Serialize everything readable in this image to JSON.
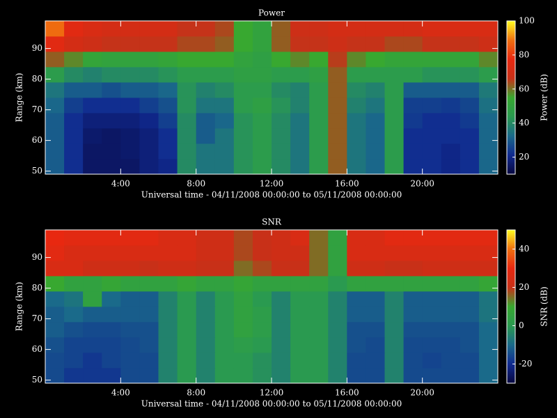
{
  "chart_data": [
    {
      "type": "heatmap",
      "title": "Power",
      "xlabel": "Universal time - 04/11/2008 00:00:00 to 05/11/2008 00:00:00",
      "ylabel": "Range (km)",
      "colorbar_label": "Power (dB)",
      "xbins": [
        0,
        1,
        2,
        3,
        4,
        5,
        6,
        7,
        8,
        9,
        10,
        11,
        12,
        13,
        14,
        15,
        16,
        17,
        18,
        19,
        20,
        21,
        22,
        23,
        24
      ],
      "ybins": [
        49,
        54,
        59,
        64,
        69,
        74,
        79,
        84,
        89,
        94,
        99
      ],
      "values": [
        [
          30,
          22,
          15,
          15,
          15,
          18,
          20,
          40,
          35,
          35,
          42,
          45,
          40,
          35,
          45,
          62,
          35,
          32,
          45,
          22,
          22,
          20,
          22,
          32
        ],
        [
          30,
          22,
          15,
          15,
          16,
          18,
          22,
          40,
          35,
          35,
          42,
          45,
          40,
          35,
          45,
          62,
          35,
          32,
          45,
          22,
          22,
          20,
          22,
          32
        ],
        [
          30,
          22,
          16,
          15,
          16,
          18,
          22,
          40,
          30,
          35,
          42,
          45,
          40,
          35,
          45,
          62,
          35,
          32,
          45,
          22,
          22,
          22,
          22,
          32
        ],
        [
          30,
          22,
          18,
          18,
          18,
          20,
          25,
          40,
          30,
          32,
          42,
          45,
          40,
          35,
          45,
          62,
          35,
          32,
          45,
          24,
          22,
          22,
          24,
          32
        ],
        [
          32,
          25,
          22,
          22,
          22,
          25,
          28,
          42,
          35,
          35,
          45,
          48,
          42,
          38,
          45,
          62,
          38,
          35,
          45,
          25,
          25,
          24,
          26,
          34
        ],
        [
          35,
          30,
          30,
          28,
          30,
          30,
          32,
          42,
          38,
          40,
          45,
          45,
          40,
          38,
          45,
          62,
          40,
          38,
          45,
          30,
          30,
          30,
          30,
          36
        ],
        [
          45,
          40,
          38,
          40,
          40,
          40,
          42,
          45,
          45,
          45,
          48,
          48,
          45,
          45,
          48,
          62,
          45,
          45,
          45,
          45,
          42,
          42,
          42,
          45
        ],
        [
          62,
          58,
          52,
          50,
          50,
          50,
          52,
          55,
          55,
          55,
          50,
          48,
          55,
          58,
          55,
          65,
          58,
          55,
          52,
          52,
          52,
          52,
          52,
          58
        ],
        [
          75,
          70,
          68,
          66,
          66,
          66,
          66,
          64,
          64,
          62,
          55,
          50,
          62,
          66,
          66,
          68,
          66,
          66,
          64,
          64,
          66,
          66,
          66,
          68
        ],
        [
          88,
          75,
          72,
          70,
          70,
          70,
          70,
          66,
          66,
          64,
          55,
          50,
          62,
          68,
          68,
          70,
          70,
          70,
          70,
          70,
          72,
          72,
          72,
          72
        ]
      ],
      "xlim": [
        0,
        24
      ],
      "ylim": [
        49,
        99
      ],
      "xticks": [
        {
          "value": 4,
          "label": "4:00"
        },
        {
          "value": 8,
          "label": "8:00"
        },
        {
          "value": 12,
          "label": "12:00"
        },
        {
          "value": 16,
          "label": "16:00"
        },
        {
          "value": 20,
          "label": "20:00"
        }
      ],
      "yticks": [
        50,
        60,
        70,
        80,
        90
      ],
      "clim": [
        10,
        100
      ],
      "cticks": [
        20,
        40,
        60,
        80,
        100
      ],
      "colormap": [
        "#080840",
        "#102a90",
        "#1a6a8a",
        "#2a9a50",
        "#38a830",
        "#c83018",
        "#e82810",
        "#f07010",
        "#ffff20"
      ]
    },
    {
      "type": "heatmap",
      "title": "SNR",
      "xlabel": "Universal time - 04/11/2008 00:00:00 to 05/11/2008 00:00:00",
      "ylabel": "Range (km)",
      "colorbar_label": "SNR (dB)",
      "xbins": [
        0,
        1,
        2,
        3,
        4,
        5,
        6,
        7,
        8,
        9,
        10,
        11,
        12,
        13,
        14,
        15,
        16,
        17,
        18,
        19,
        20,
        21,
        22,
        23,
        24
      ],
      "ybins": [
        49,
        54,
        59,
        64,
        69,
        74,
        79,
        84,
        89,
        94,
        99
      ],
      "values": [
        [
          -15,
          -18,
          -18,
          -18,
          -15,
          -15,
          -5,
          0,
          -5,
          0,
          0,
          -2,
          -5,
          0,
          0,
          -5,
          -15,
          -15,
          -5,
          -15,
          -15,
          -15,
          -15,
          -10
        ],
        [
          -15,
          -16,
          -18,
          -16,
          -15,
          -15,
          -5,
          0,
          -5,
          0,
          0,
          -2,
          -5,
          0,
          0,
          -5,
          -15,
          -15,
          -5,
          -15,
          -16,
          -15,
          -15,
          -10
        ],
        [
          -14,
          -16,
          -16,
          -16,
          -15,
          -14,
          -5,
          0,
          -5,
          0,
          2,
          0,
          -5,
          0,
          0,
          -5,
          -14,
          -15,
          -5,
          -15,
          -15,
          -15,
          -14,
          -10
        ],
        [
          -12,
          -14,
          -15,
          -15,
          -14,
          -14,
          -5,
          0,
          -5,
          0,
          5,
          2,
          -5,
          0,
          0,
          -5,
          -14,
          -14,
          -5,
          -14,
          -14,
          -14,
          -14,
          -10
        ],
        [
          -12,
          -10,
          -12,
          -12,
          -12,
          -12,
          -5,
          0,
          -5,
          0,
          5,
          2,
          -5,
          0,
          0,
          -5,
          -12,
          -12,
          -5,
          -12,
          -12,
          -12,
          -12,
          -8
        ],
        [
          -10,
          -8,
          5,
          -10,
          -12,
          -12,
          -5,
          0,
          -5,
          0,
          5,
          0,
          -5,
          0,
          0,
          -5,
          -12,
          -12,
          -5,
          -12,
          -12,
          -12,
          -12,
          -8
        ],
        [
          10,
          5,
          5,
          8,
          5,
          5,
          5,
          8,
          5,
          5,
          8,
          5,
          5,
          5,
          5,
          0,
          5,
          5,
          5,
          5,
          5,
          5,
          5,
          8
        ],
        [
          25,
          25,
          22,
          22,
          22,
          20,
          22,
          22,
          20,
          20,
          15,
          18,
          20,
          20,
          15,
          5,
          22,
          22,
          20,
          20,
          22,
          22,
          22,
          22
        ],
        [
          28,
          25,
          25,
          25,
          25,
          25,
          25,
          25,
          22,
          22,
          18,
          20,
          22,
          22,
          15,
          5,
          25,
          25,
          25,
          25,
          25,
          25,
          25,
          25
        ],
        [
          30,
          28,
          28,
          28,
          28,
          28,
          25,
          25,
          22,
          22,
          18,
          20,
          22,
          25,
          15,
          5,
          25,
          25,
          28,
          28,
          28,
          28,
          28,
          28
        ]
      ],
      "xlim": [
        0,
        24
      ],
      "ylim": [
        49,
        99
      ],
      "xticks": [
        {
          "value": 4,
          "label": "4:00"
        },
        {
          "value": 8,
          "label": "8:00"
        },
        {
          "value": 12,
          "label": "12:00"
        },
        {
          "value": 16,
          "label": "16:00"
        },
        {
          "value": 20,
          "label": "20:00"
        }
      ],
      "yticks": [
        50,
        60,
        70,
        80,
        90
      ],
      "clim": [
        -30,
        50
      ],
      "cticks": [
        -20,
        0,
        20,
        40
      ],
      "colormap": [
        "#080840",
        "#102a90",
        "#1a6a8a",
        "#2a9a50",
        "#38a830",
        "#c83018",
        "#e82810",
        "#f07010",
        "#ffff20"
      ]
    }
  ]
}
